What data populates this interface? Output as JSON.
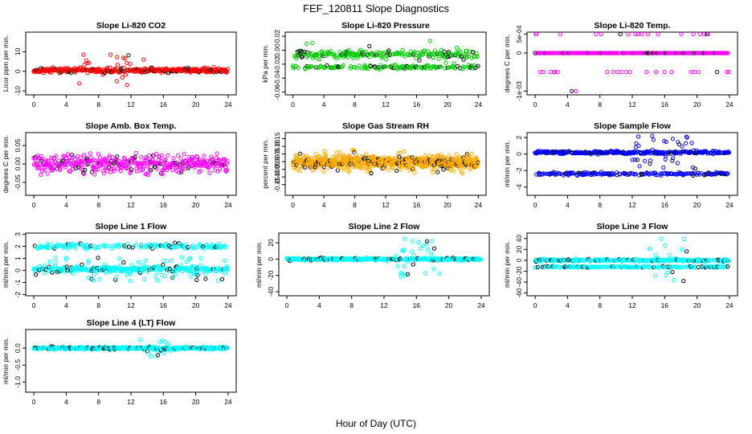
{
  "figure": {
    "title": "FEF_120811  Slope Diagnostics",
    "xlabel": "Hour of Day (UTC)"
  },
  "chart_data": [
    {
      "type": "scatter",
      "title": "Slope Li-820 CO2",
      "ylabel": "Licor ppm per min.",
      "xlim": [
        -1,
        25
      ],
      "ylim": [
        -12,
        20
      ],
      "xticks": [
        0,
        4,
        8,
        12,
        16,
        20,
        24
      ],
      "yticks": [
        -10,
        0,
        10
      ],
      "ytick_labels": [
        "-10",
        "0",
        "10"
      ],
      "color": "#ff0000",
      "base": 0.5,
      "spread": 2,
      "outlier_amp": 8,
      "outlier_frac": 0.18,
      "outlier_start": 5,
      "outlier_end": 14,
      "seed": 11,
      "n": 380
    },
    {
      "type": "scatter",
      "title": "Slope Li-820 Pressure",
      "ylabel": "kPa per min.",
      "xlim": [
        -1,
        25
      ],
      "ylim": [
        -0.064,
        0.026
      ],
      "xticks": [
        0,
        4,
        8,
        12,
        16,
        20,
        24
      ],
      "yticks": [
        -0.06,
        -0.04,
        -0.02,
        0,
        0.02
      ],
      "ytick_labels": [
        "-0.06",
        "-0.04",
        "-0.02",
        "0.00",
        "0.02"
      ],
      "color": "#00cc00",
      "base": -0.006,
      "spread": 0.01,
      "band2": -0.024,
      "band2_spread": 0.005,
      "outlier_amp": 0.02,
      "outlier_frac": 0.05,
      "outlier_start": 0,
      "outlier_end": 24,
      "seed": 23,
      "n": 380
    },
    {
      "type": "scatter",
      "title": "Slope Li-820 Temp.",
      "ylabel": "degrees C per min.",
      "xlim": [
        -1,
        25
      ],
      "ylim": [
        -0.0011,
        0.00055
      ],
      "xticks": [
        0,
        4,
        8,
        12,
        16,
        20,
        24
      ],
      "yticks": [
        -0.001,
        0,
        0.0005
      ],
      "ytick_labels": [
        "-1e-03",
        "0",
        "5e-04"
      ],
      "color": "#ff00ff",
      "base": 0,
      "spread": 0,
      "levels": [
        0.0005,
        0,
        -0.0005,
        -0.001
      ],
      "level_probs": [
        0.06,
        0.86,
        0.07,
        0.01
      ],
      "seed": 31,
      "n": 300
    },
    {
      "type": "scatter",
      "title": "Slope Amb. Box Temp.",
      "ylabel": "degrees C per min.",
      "xlim": [
        -1,
        25
      ],
      "ylim": [
        -0.085,
        0.085
      ],
      "xticks": [
        0,
        4,
        8,
        12,
        16,
        20,
        24
      ],
      "yticks": [
        -0.05,
        0,
        0.05
      ],
      "ytick_labels": [
        "-0.05",
        "0.00",
        "0.05"
      ],
      "color": "#ff00ff",
      "base": 0,
      "spread": 0.04,
      "outlier_amp": 0.03,
      "outlier_frac": 0.1,
      "outlier_start": 0,
      "outlier_end": 24,
      "seed": 41,
      "n": 420
    },
    {
      "type": "scatter",
      "title": "Slope Gas Stream RH",
      "ylabel": "percent per min.",
      "xlim": [
        -1,
        25
      ],
      "ylim": [
        -0.22,
        0.19
      ],
      "xticks": [
        0,
        4,
        8,
        12,
        16,
        20,
        24
      ],
      "yticks": [
        -0.15,
        -0.1,
        -0.05,
        0,
        0.05,
        0.1,
        0.15
      ],
      "ytick_labels": [
        "-0.15",
        "-0.10",
        "-0.05",
        "0.00",
        "0.05",
        "0.10",
        "0.15"
      ],
      "color": "#ffaa00",
      "base": 0,
      "spread": 0.075,
      "outlier_amp": 0.08,
      "outlier_frac": 0.08,
      "outlier_start": 0,
      "outlier_end": 24,
      "seed": 53,
      "n": 700
    },
    {
      "type": "scatter",
      "title": "Slope Sample Flow",
      "ylabel": "ml/min per min.",
      "xlim": [
        -1,
        25
      ],
      "ylim": [
        -5,
        2.6
      ],
      "xticks": [
        0,
        4,
        8,
        12,
        16,
        20,
        24
      ],
      "yticks": [
        -4,
        -2,
        0,
        2
      ],
      "ytick_labels": [
        "-4",
        "-2",
        "0",
        "2"
      ],
      "color": "#0000ff",
      "base": 0.2,
      "spread": 0.3,
      "band2": -2.4,
      "band2_spread": 0.3,
      "outlier_amp": 2,
      "outlier_frac": 0.25,
      "outlier_start": 12,
      "outlier_end": 20,
      "seed": 61,
      "n": 520
    },
    {
      "type": "scatter",
      "title": "Slope Line 1 Flow",
      "ylabel": "ml/min per min.",
      "xlim": [
        -1,
        25
      ],
      "ylim": [
        -2.1,
        3.1
      ],
      "xticks": [
        0,
        4,
        8,
        12,
        16,
        20,
        24
      ],
      "yticks": [
        -2,
        -1,
        0,
        1,
        2,
        3
      ],
      "ytick_labels": [
        "-2",
        "-1",
        "0",
        "1",
        "2",
        "3"
      ],
      "color": "#00ffff",
      "base": 0.1,
      "spread": 0.4,
      "band2": 2,
      "band2_spread": 0.35,
      "outlier_amp": 1,
      "outlier_frac": 0.15,
      "outlier_start": 0,
      "outlier_end": 24,
      "seed": 71,
      "n": 520
    },
    {
      "type": "scatter",
      "title": "Slope Line 2 Flow",
      "ylabel": "ml/min per min.",
      "xlim": [
        -1,
        25
      ],
      "ylim": [
        -45,
        32
      ],
      "xticks": [
        0,
        4,
        8,
        12,
        16,
        20,
        24
      ],
      "yticks": [
        -40,
        -20,
        0,
        20
      ],
      "ytick_labels": [
        "-40",
        "-20",
        "0",
        "20"
      ],
      "color": "#00ffff",
      "base": 0,
      "spread": 2.5,
      "outlier_amp": 25,
      "outlier_frac": 0.25,
      "outlier_start": 13,
      "outlier_end": 19,
      "seed": 83,
      "n": 420
    },
    {
      "type": "scatter",
      "title": "Slope Line 3 Flow",
      "ylabel": "ml/min per min.",
      "xlim": [
        -1,
        25
      ],
      "ylim": [
        -65,
        50
      ],
      "xticks": [
        0,
        4,
        8,
        12,
        16,
        20,
        24
      ],
      "yticks": [
        -60,
        -40,
        -20,
        0,
        20,
        40
      ],
      "ytick_labels": [
        "-60",
        "-40",
        "-20",
        "0",
        "20",
        "40"
      ],
      "color": "#00ffff",
      "base": 0,
      "spread": 4,
      "band2": -12,
      "band2_spread": 2,
      "outlier_amp": 40,
      "outlier_frac": 0.2,
      "outlier_start": 14,
      "outlier_end": 19,
      "seed": 97,
      "n": 520
    },
    {
      "type": "scatter",
      "title": "Slope Line 4 (LT) Flow",
      "ylabel": "ml/min per min.",
      "xlim": [
        -1,
        25
      ],
      "ylim": [
        -1.3,
        0.55
      ],
      "xticks": [
        0,
        4,
        8,
        12,
        16,
        20,
        24
      ],
      "yticks": [
        -1,
        -0.5,
        0
      ],
      "ytick_labels": [
        "-1.0",
        "-0.5",
        "0.0"
      ],
      "color": "#00ffff",
      "base": 0,
      "spread": 0.06,
      "outlier_amp": 0.25,
      "outlier_frac": 0.15,
      "outlier_start": 13,
      "outlier_end": 17,
      "seed": 109,
      "n": 460
    }
  ]
}
